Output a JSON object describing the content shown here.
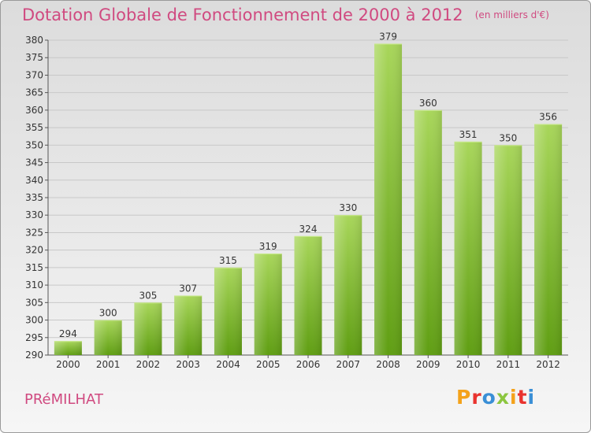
{
  "header": {
    "title": "Dotation Globale de Fonctionnement de 2000 à 2012",
    "unit": "(en milliers d'€)"
  },
  "footer": {
    "commune": "PRéMILHAT",
    "logo_letters": [
      {
        "char": "P",
        "color": "#f4a21a"
      },
      {
        "char": "r",
        "color": "#e9332f"
      },
      {
        "char": "o",
        "color": "#3a8fd6"
      },
      {
        "char": "x",
        "color": "#8cc63f"
      },
      {
        "char": "i",
        "color": "#f4a21a"
      },
      {
        "char": "t",
        "color": "#e9332f"
      },
      {
        "char": "i",
        "color": "#3a8fd6"
      }
    ]
  },
  "colors": {
    "title": "#d04a80",
    "bar_light": "#a8d65a",
    "bar_dark": "#5f9e12",
    "grid": "#c8c8c8"
  },
  "chart_data": {
    "type": "bar",
    "title": "Dotation Globale de Fonctionnement de 2000 à 2012",
    "subtitle": "(en milliers d'€)",
    "categories": [
      "2000",
      "2001",
      "2002",
      "2003",
      "2004",
      "2005",
      "2006",
      "2007",
      "2008",
      "2009",
      "2010",
      "2011",
      "2012"
    ],
    "values": [
      294,
      300,
      305,
      307,
      315,
      319,
      324,
      330,
      379,
      360,
      351,
      350,
      356
    ],
    "ylim": [
      290,
      380
    ],
    "ytick_step": 5,
    "grid": true,
    "legend": "none",
    "data_labels": true
  }
}
